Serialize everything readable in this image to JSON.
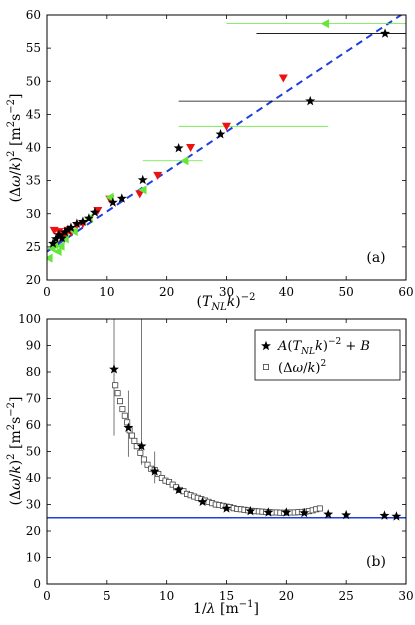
{
  "chart_data": [
    {
      "type": "scatter",
      "panel_label": "(a)",
      "xlabel": "(T_NL k)^-2",
      "ylabel": "(Δω/k)^2 [m^2 s^-2]",
      "xlim": [
        0,
        60
      ],
      "ylim": [
        20,
        60
      ],
      "xticks": [
        0,
        10,
        20,
        30,
        40,
        50,
        60
      ],
      "yticks": [
        20,
        25,
        30,
        35,
        40,
        45,
        50,
        55,
        60
      ],
      "fit_line": {
        "style": "dashed",
        "color": "#1f3fdc",
        "x": [
          0,
          60
        ],
        "y": [
          24.3,
          60.5
        ]
      },
      "series": [
        {
          "marker": "star",
          "color": "#000000",
          "points": [
            [
              1,
              25.5
            ],
            [
              1.5,
              26.2
            ],
            [
              2,
              26.8
            ],
            [
              2.5,
              26.3
            ],
            [
              3,
              27.2
            ],
            [
              3.5,
              27.6
            ],
            [
              4,
              27.9
            ],
            [
              5,
              28.5
            ],
            [
              6,
              28.8
            ],
            [
              7,
              29.3
            ],
            [
              8,
              30.2
            ],
            [
              11,
              31.7
            ],
            [
              12.5,
              32.3
            ],
            [
              16,
              35.1
            ],
            [
              22,
              39.9
            ],
            [
              29,
              42
            ],
            [
              44,
              47
            ],
            [
              56.5,
              57.2
            ]
          ],
          "xerr": [
            0,
            0,
            0,
            0,
            0,
            0,
            0,
            0,
            0,
            0,
            0,
            0,
            0,
            0,
            [
              22,
              22
            ],
            [
              29,
              29
            ],
            [
              22,
              65
            ],
            [
              35,
              65
            ]
          ]
        },
        {
          "marker": "triangle-down",
          "color": "#ee1111",
          "points": [
            [
              1.2,
              27.5
            ],
            [
              2,
              27.3
            ],
            [
              2.5,
              27
            ],
            [
              3,
              26.8
            ],
            [
              3.5,
              27.5
            ],
            [
              4,
              27.2
            ],
            [
              5,
              28.2
            ],
            [
              6,
              28.5
            ],
            [
              8.5,
              30.5
            ],
            [
              10.5,
              32.2
            ],
            [
              15.5,
              33
            ],
            [
              18.5,
              35.8
            ],
            [
              24,
              40
            ],
            [
              30,
              43.2
            ],
            [
              39.5,
              50.5
            ]
          ],
          "xerr": [
            0,
            0,
            0,
            0,
            0,
            0,
            0,
            0,
            0,
            0,
            0,
            0,
            0,
            [
              22,
              47
            ],
            0
          ]
        },
        {
          "marker": "triangle-left",
          "color": "#66e63a",
          "points": [
            [
              0.3,
              23.3
            ],
            [
              0.8,
              24.8
            ],
            [
              1.2,
              25.3
            ],
            [
              1.8,
              24.3
            ],
            [
              2.3,
              25.1
            ],
            [
              3,
              26.2
            ],
            [
              4.5,
              27.3
            ],
            [
              7,
              29.3
            ],
            [
              10.5,
              32.5
            ],
            [
              16,
              33.6
            ],
            [
              23,
              38
            ],
            [
              46.5,
              58.7
            ]
          ],
          "xerr": [
            0,
            0,
            0,
            0,
            0,
            0,
            0,
            0,
            0,
            0,
            [
              16,
              26
            ],
            [
              30,
              63
            ]
          ]
        }
      ]
    },
    {
      "type": "scatter",
      "panel_label": "(b)",
      "xlabel": "1/λ [m^-1]",
      "ylabel": "(Δω/k)^2 [m^2 s^-2]",
      "xlim": [
        0,
        30
      ],
      "ylim": [
        0,
        100
      ],
      "xticks": [
        0,
        5,
        10,
        15,
        20,
        25,
        30
      ],
      "yticks": [
        0,
        10,
        20,
        30,
        40,
        50,
        60,
        70,
        80,
        90,
        100
      ],
      "hline": {
        "y": 25,
        "color": "#1f3fdc"
      },
      "legend": {
        "placement": "top-right",
        "entries": [
          "A(T_NL k)^-2 + B",
          "(Δω/k)^2"
        ]
      },
      "series": [
        {
          "name": "A(T_NL k)^-2 + B",
          "marker": "star",
          "color": "#000000",
          "points": [
            [
              5.6,
              81
            ],
            [
              6.8,
              59
            ],
            [
              7.9,
              52
            ],
            [
              9,
              42.5
            ],
            [
              11,
              35.5
            ],
            [
              13,
              31
            ],
            [
              15,
              28.5
            ],
            [
              17,
              27.5
            ],
            [
              18.5,
              27
            ],
            [
              20,
              27
            ],
            [
              21.5,
              26.8
            ],
            [
              23.5,
              26.3
            ],
            [
              25,
              26
            ],
            [
              28.2,
              25.8
            ],
            [
              29.2,
              25.5
            ]
          ],
          "yerr": [
            [
              56,
              100
            ],
            [
              48,
              73
            ],
            [
              45,
              100
            ],
            [
              38,
              50
            ],
            0,
            0,
            0,
            0,
            0,
            0,
            0,
            0,
            0,
            0,
            0
          ]
        },
        {
          "name": "(Δω/k)^2",
          "marker": "square",
          "color": "#444444",
          "points": [
            [
              5.7,
              75
            ],
            [
              5.9,
              72
            ],
            [
              6.1,
              69
            ],
            [
              6.3,
              66
            ],
            [
              6.5,
              63.5
            ],
            [
              6.7,
              61
            ],
            [
              6.9,
              58
            ],
            [
              7.1,
              56
            ],
            [
              7.3,
              54
            ],
            [
              7.5,
              52
            ],
            [
              7.8,
              49.5
            ],
            [
              8.1,
              47
            ],
            [
              8.4,
              45
            ],
            [
              8.7,
              43.5
            ],
            [
              9.0,
              43
            ],
            [
              9.3,
              41.5
            ],
            [
              9.6,
              40
            ],
            [
              9.9,
              39
            ],
            [
              10.2,
              38.5
            ],
            [
              10.5,
              37.5
            ],
            [
              10.8,
              36.5
            ],
            [
              11.1,
              35.5
            ],
            [
              11.4,
              35
            ],
            [
              11.7,
              34
            ],
            [
              12.0,
              33.5
            ],
            [
              12.3,
              33
            ],
            [
              12.6,
              32.5
            ],
            [
              12.9,
              32
            ],
            [
              13.2,
              31.5
            ],
            [
              13.5,
              31
            ],
            [
              13.8,
              30.5
            ],
            [
              14.1,
              30
            ],
            [
              14.4,
              29.8
            ],
            [
              14.7,
              29.5
            ],
            [
              15.0,
              29.2
            ],
            [
              15.3,
              29
            ],
            [
              15.6,
              28.6
            ],
            [
              15.9,
              28.3
            ],
            [
              16.2,
              28.2
            ],
            [
              16.5,
              28
            ],
            [
              16.8,
              27.8
            ],
            [
              17.1,
              27.6
            ],
            [
              17.4,
              27.5
            ],
            [
              17.7,
              27.4
            ],
            [
              18.0,
              27.3
            ],
            [
              18.3,
              27.2
            ],
            [
              18.6,
              27.1
            ],
            [
              18.9,
              27
            ],
            [
              19.2,
              27
            ],
            [
              19.5,
              26.9
            ],
            [
              19.8,
              26.9
            ],
            [
              20.1,
              27
            ],
            [
              20.4,
              27
            ],
            [
              20.7,
              27
            ],
            [
              21.0,
              27.1
            ],
            [
              21.3,
              27.2
            ],
            [
              21.6,
              27.3
            ],
            [
              21.9,
              27.5
            ],
            [
              22.2,
              27.8
            ],
            [
              22.5,
              28.2
            ],
            [
              22.8,
              28.5
            ]
          ]
        }
      ]
    }
  ]
}
